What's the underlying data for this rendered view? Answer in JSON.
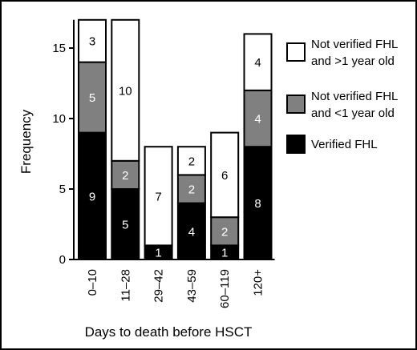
{
  "chart_data": {
    "type": "bar",
    "stacked": true,
    "xlabel": "Days to death before HSCT",
    "ylabel": "Frequency",
    "ylim": [
      0,
      17
    ],
    "yticks": [
      0,
      5,
      10,
      15
    ],
    "categories": [
      "0–10",
      "11–28",
      "29–42",
      "43–59",
      "60–119",
      "120+"
    ],
    "series": [
      {
        "name": "Verified FHL",
        "color": "#000000",
        "label_color": "#ffffff",
        "values": [
          9,
          5,
          1,
          4,
          1,
          8
        ]
      },
      {
        "name": "Not verified FHL and <1 year old",
        "color": "#808080",
        "label_color": "#ffffff",
        "values": [
          5,
          2,
          0,
          2,
          2,
          4
        ]
      },
      {
        "name": "Not verified FHL and >1 year old",
        "color": "#ffffff",
        "label_color": "#000000",
        "values": [
          3,
          10,
          7,
          2,
          6,
          4
        ]
      }
    ],
    "legend": {
      "position": "right",
      "entries": [
        {
          "line1": "Not verified FHL",
          "line2": "and >1 year old",
          "color": "#ffffff"
        },
        {
          "line1": "Not verified FHL",
          "line2": "and <1 year old",
          "color": "#808080"
        },
        {
          "line1": "Verified FHL",
          "line2": "",
          "color": "#000000"
        }
      ]
    }
  }
}
